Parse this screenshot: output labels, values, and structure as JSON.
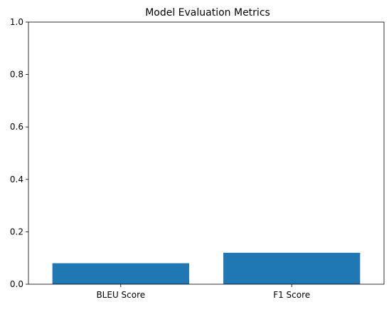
{
  "chart_data": {
    "type": "bar",
    "title": "Model Evaluation Metrics",
    "xlabel": "",
    "ylabel": "",
    "categories": [
      "BLEU Score",
      "F1 Score"
    ],
    "values": [
      0.08,
      0.12
    ],
    "ylim": [
      0,
      1
    ],
    "yticks": [
      "0.0",
      "0.2",
      "0.4",
      "0.6",
      "0.8",
      "1.0"
    ],
    "grid": false,
    "bar_color": "#1f77b4"
  }
}
